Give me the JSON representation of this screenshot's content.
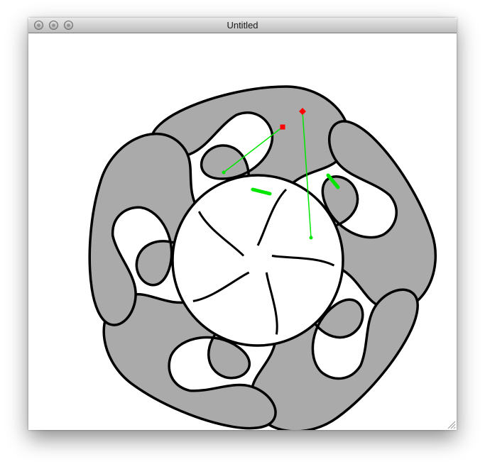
{
  "window": {
    "title": "Untitled",
    "buttons": [
      "close-button",
      "minimize-button",
      "zoom-button"
    ]
  },
  "colors": {
    "shape_fill": "#aaaaaa",
    "stroke": "#000000",
    "handle_line": "#00e600",
    "control_point": "#ff0000"
  },
  "icons": [
    "resize-grip-icon"
  ]
}
